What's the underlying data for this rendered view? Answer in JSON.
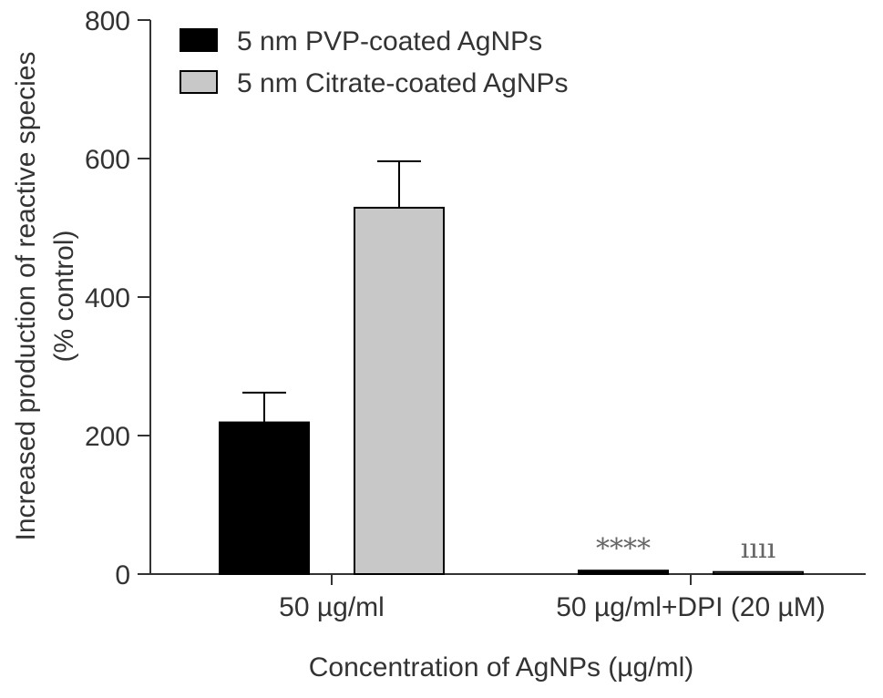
{
  "chart_data": {
    "type": "bar",
    "categories": [
      "50 µg/ml",
      "50 µg/ml+DPI (20 µM)"
    ],
    "series": [
      {
        "name": "5 nm PVP-coated AgNPs",
        "color": "#000000",
        "values": [
          219,
          5
        ],
        "errors": [
          43,
          0
        ]
      },
      {
        "name": "5 nm Citrate-coated AgNPs",
        "color": "#c8c8c8",
        "values": [
          529,
          3
        ],
        "errors": [
          67,
          0
        ]
      }
    ],
    "significance": [
      {
        "category_index": 1,
        "series_index": 0,
        "label": "****"
      },
      {
        "category_index": 1,
        "series_index": 1,
        "label": "ıııı"
      }
    ],
    "xlabel": "Concentration of AgNPs (µg/ml)",
    "ylabel_lines": [
      "Increased production of reactive species",
      "(% control)"
    ],
    "ylim": [
      0,
      800
    ],
    "yticks": [
      0,
      200,
      400,
      600,
      800
    ],
    "grid": false,
    "legend_position": "top-left"
  }
}
